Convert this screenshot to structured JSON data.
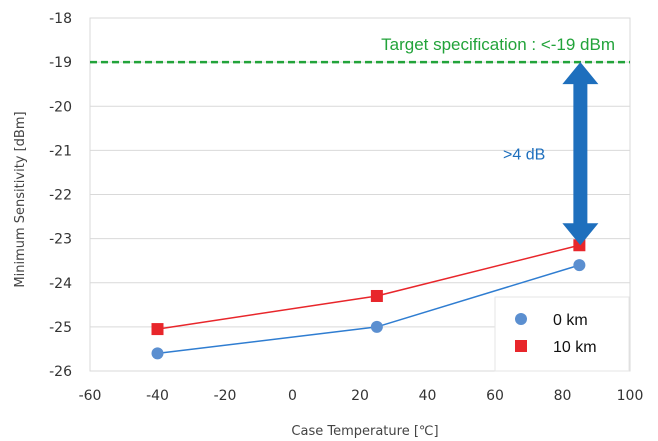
{
  "chart_data": {
    "type": "line",
    "xlabel": "Case Temperature [℃]",
    "ylabel": "Minimum Sensitivity [dBm]",
    "xlim": [
      -60,
      100
    ],
    "ylim": [
      -26,
      -18
    ],
    "xticks": [
      "-60",
      "-40",
      "-20",
      "0",
      "20",
      "40",
      "60",
      "80",
      "100"
    ],
    "yticks": [
      "-18",
      "-19",
      "-20",
      "-21",
      "-22",
      "-23",
      "-24",
      "-25",
      "-26"
    ],
    "grid": "horizontal",
    "legend_position": "bottom-right",
    "series": [
      {
        "name": "0 km",
        "marker": "circle",
        "color": "#5b8fd0",
        "line_color": "#2f7dd1",
        "x": [
          -40,
          25,
          85
        ],
        "y": [
          -25.6,
          -25.0,
          -23.6
        ]
      },
      {
        "name": "10 km",
        "marker": "square",
        "color": "#e8262b",
        "line_color": "#e8262b",
        "x": [
          -40,
          25,
          85
        ],
        "y": [
          -25.05,
          -24.3,
          -23.15
        ]
      }
    ],
    "reference_line": {
      "y": -19,
      "label": "Target specification : <-19 dBm",
      "color": "#22a33a",
      "style": "dashed"
    },
    "gap_annotation": {
      "from": -19,
      "to": -23.15,
      "x": 85,
      "label": ">4 dB",
      "color": "#1e6fbd"
    }
  }
}
